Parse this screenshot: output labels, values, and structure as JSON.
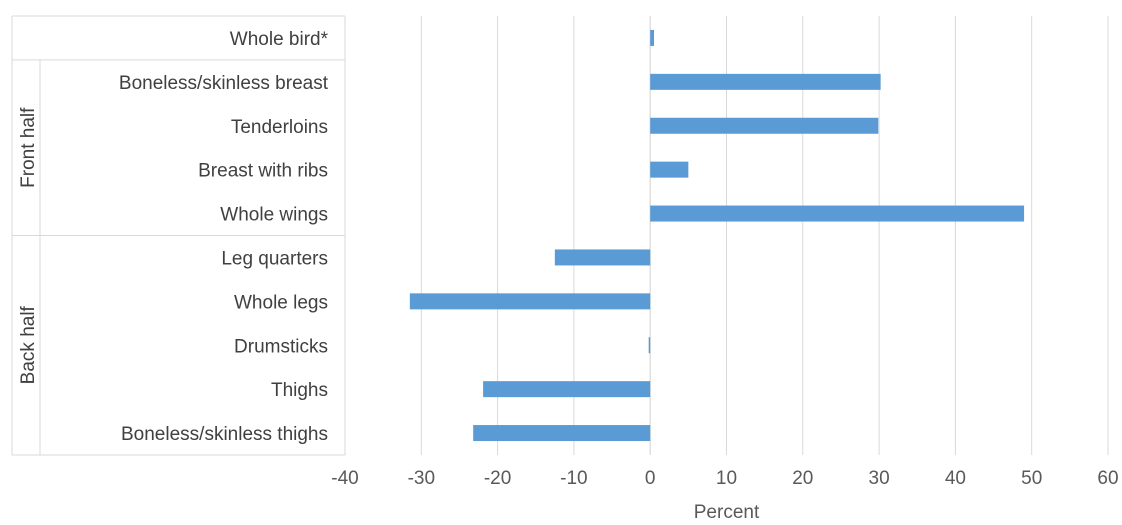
{
  "chart_data": {
    "type": "bar",
    "orientation": "horizontal",
    "categories": [
      "Whole bird*",
      "Boneless/skinless breast",
      "Tenderloins",
      "Breast with ribs",
      "Whole wings",
      "Leg quarters",
      "Whole legs",
      "Drumsticks",
      "Thighs",
      "Boneless/skinless thighs"
    ],
    "groups": [
      {
        "name": "Front half",
        "categories": [
          "Boneless/skinless breast",
          "Tenderloins",
          "Breast with ribs",
          "Whole wings"
        ]
      },
      {
        "name": "Back half",
        "categories": [
          "Leg quarters",
          "Whole legs",
          "Drumsticks",
          "Thighs",
          "Boneless/skinless thighs"
        ]
      }
    ],
    "values": [
      0.5,
      30.2,
      29.9,
      5.0,
      49.0,
      -12.5,
      -31.5,
      -0.2,
      -21.9,
      -23.2
    ],
    "xlabel": "Percent",
    "xlim": [
      -40,
      60
    ],
    "xticks": [
      "-40",
      "-30",
      "-20",
      "-10",
      "0",
      "10",
      "20",
      "30",
      "40",
      "50",
      "60"
    ],
    "grid": "vertical",
    "bar_color": "#5b9bd5"
  }
}
